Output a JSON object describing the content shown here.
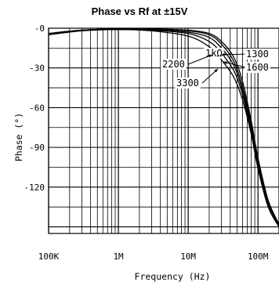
{
  "chart_data": {
    "type": "line",
    "title": "Phase vs Rf at ±15V",
    "xlabel": "Frequency (Hz)",
    "ylabel": "Phase (°)",
    "x_scale": "log",
    "xlim": [
      100000,
      200000000
    ],
    "ylim": [
      -155,
      0
    ],
    "x_ticks": [
      {
        "value": 100000,
        "label": "100K"
      },
      {
        "value": 1000000,
        "label": "1M"
      },
      {
        "value": 10000000,
        "label": "10M"
      },
      {
        "value": 100000000,
        "label": "100M"
      }
    ],
    "y_ticks": [
      {
        "value": 0,
        "label": "-0"
      },
      {
        "value": -30,
        "label": "-30"
      },
      {
        "value": -60,
        "label": "-60"
      },
      {
        "value": -90,
        "label": "-90"
      },
      {
        "value": -120,
        "label": "-120"
      }
    ],
    "grid": true,
    "series": [
      {
        "name": "1kΩ",
        "points": [
          [
            100000,
            -4
          ],
          [
            300000,
            -1.5
          ],
          [
            1000000,
            -0.5
          ],
          [
            3000000,
            -0.5
          ],
          [
            10000000,
            -1.5
          ],
          [
            20000000,
            -4
          ],
          [
            30000000,
            -10
          ],
          [
            45000000,
            -22
          ],
          [
            60000000,
            -40
          ],
          [
            80000000,
            -70
          ],
          [
            100000000,
            -98
          ],
          [
            140000000,
            -130
          ],
          [
            200000000,
            -148
          ]
        ]
      },
      {
        "name": "1300",
        "points": [
          [
            100000,
            -4
          ],
          [
            300000,
            -1.5
          ],
          [
            1000000,
            -0.5
          ],
          [
            3000000,
            -0.5
          ],
          [
            10000000,
            -2
          ],
          [
            20000000,
            -5
          ],
          [
            30000000,
            -12
          ],
          [
            45000000,
            -25
          ],
          [
            60000000,
            -44
          ],
          [
            80000000,
            -73
          ],
          [
            100000000,
            -100
          ],
          [
            140000000,
            -131
          ],
          [
            200000000,
            -148
          ]
        ]
      },
      {
        "name": "1600",
        "points": [
          [
            100000,
            -4
          ],
          [
            300000,
            -1.5
          ],
          [
            1000000,
            -0.5
          ],
          [
            3000000,
            -1
          ],
          [
            10000000,
            -3
          ],
          [
            20000000,
            -7
          ],
          [
            30000000,
            -15
          ],
          [
            45000000,
            -28
          ],
          [
            60000000,
            -47
          ],
          [
            80000000,
            -75
          ],
          [
            100000000,
            -102
          ],
          [
            140000000,
            -132
          ],
          [
            200000000,
            -149
          ]
        ]
      },
      {
        "name": "2200",
        "points": [
          [
            100000,
            -4
          ],
          [
            300000,
            -1.5
          ],
          [
            1000000,
            -1
          ],
          [
            3000000,
            -1.5
          ],
          [
            10000000,
            -4
          ],
          [
            20000000,
            -10
          ],
          [
            30000000,
            -19
          ],
          [
            45000000,
            -32
          ],
          [
            60000000,
            -50
          ],
          [
            80000000,
            -78
          ],
          [
            100000000,
            -104
          ],
          [
            140000000,
            -133
          ],
          [
            200000000,
            -149
          ]
        ]
      },
      {
        "name": "3300",
        "points": [
          [
            100000,
            -5
          ],
          [
            300000,
            -2
          ],
          [
            1000000,
            -1
          ],
          [
            3000000,
            -2
          ],
          [
            10000000,
            -6
          ],
          [
            20000000,
            -14
          ],
          [
            30000000,
            -24
          ],
          [
            45000000,
            -37
          ],
          [
            60000000,
            -54
          ],
          [
            80000000,
            -80
          ],
          [
            100000000,
            -106
          ],
          [
            140000000,
            -135
          ],
          [
            200000000,
            -150
          ]
        ]
      }
    ],
    "annotations": [
      {
        "text": "1kΩ",
        "series": "1kΩ"
      },
      {
        "text": "1300",
        "series": "1300"
      },
      {
        "text": "1600",
        "series": "1600"
      },
      {
        "text": "2200",
        "series": "2200"
      },
      {
        "text": "3300",
        "series": "3300"
      }
    ]
  }
}
